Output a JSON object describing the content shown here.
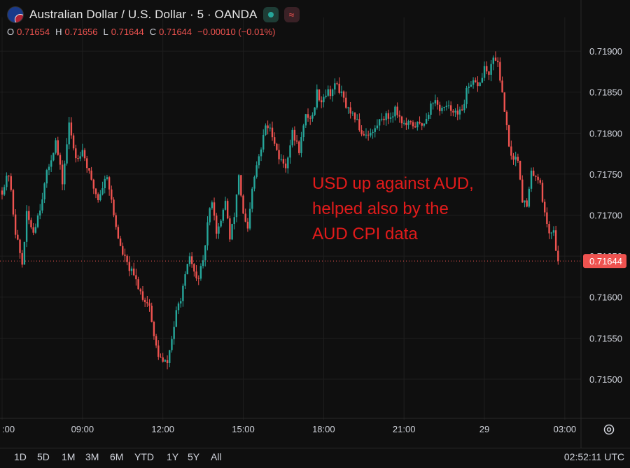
{
  "header": {
    "title": "Australian Dollar / U.S. Dollar · 5 · OANDA",
    "ohlc": [
      {
        "k": "O",
        "v": "0.71654"
      },
      {
        "k": "H",
        "v": "0.71656"
      },
      {
        "k": "L",
        "v": "0.71644"
      },
      {
        "k": "C",
        "v": "0.71644"
      }
    ],
    "change": "−0.00010 (−0.01%)"
  },
  "annotation": [
    "USD up against AUD,",
    "helped also by the",
    "AUD CPI data"
  ],
  "ranges": [
    "1D",
    "5D",
    "1M",
    "3M",
    "6M",
    "YTD",
    "1Y",
    "5Y",
    "All"
  ],
  "clock": "02:52:11 UTC",
  "colors": {
    "up": "#26a69a",
    "down": "#ef5350",
    "annotation": "#e21b1b",
    "background": "#0f0f0f"
  },
  "chart_data": {
    "type": "candlestick",
    "y_ticks": [
      0.719,
      0.7185,
      0.718,
      0.7175,
      0.717,
      0.7165,
      0.716,
      0.7155,
      0.715
    ],
    "y_tick_labels": [
      "0.71900",
      "0.71850",
      "0.71800",
      "0.71750",
      "0.71700",
      "0.71650",
      "0.71600",
      "0.71550",
      "0.71500"
    ],
    "ylim": [
      0.71459,
      0.71924
    ],
    "x_ticks": [
      {
        "label": ":00",
        "t": 0
      },
      {
        "label": "09:00",
        "t": 36
      },
      {
        "label": "12:00",
        "t": 72
      },
      {
        "label": "15:00",
        "t": 108
      },
      {
        "label": "18:00",
        "t": 144
      },
      {
        "label": "21:00",
        "t": 180
      },
      {
        "label": "29",
        "t": 216
      },
      {
        "label": "03:00",
        "t": 252
      }
    ],
    "x_range": [
      0,
      252
    ],
    "last_price": 0.71644,
    "last_price_label": "0.71644",
    "grid": true,
    "close_path": [
      [
        0,
        0.7173
      ],
      [
        3,
        0.7175
      ],
      [
        6,
        0.7168
      ],
      [
        9,
        0.7164
      ],
      [
        11,
        0.717
      ],
      [
        14,
        0.7168
      ],
      [
        17,
        0.7171
      ],
      [
        20,
        0.7175
      ],
      [
        24,
        0.7179
      ],
      [
        27,
        0.7174
      ],
      [
        30,
        0.7181
      ],
      [
        33,
        0.7177
      ],
      [
        36,
        0.7178
      ],
      [
        40,
        0.7174
      ],
      [
        43,
        0.7172
      ],
      [
        47,
        0.7175
      ],
      [
        50,
        0.717
      ],
      [
        53,
        0.7166
      ],
      [
        56,
        0.7164
      ],
      [
        60,
        0.7162
      ],
      [
        63,
        0.716
      ],
      [
        66,
        0.7159
      ],
      [
        68,
        0.7155
      ],
      [
        70,
        0.7153
      ],
      [
        72,
        0.7152
      ],
      [
        74,
        0.7152
      ],
      [
        76,
        0.7155
      ],
      [
        78,
        0.7158
      ],
      [
        81,
        0.7161
      ],
      [
        84,
        0.7165
      ],
      [
        87,
        0.7162
      ],
      [
        90,
        0.7164
      ],
      [
        92,
        0.7169
      ],
      [
        94,
        0.7172
      ],
      [
        96,
        0.7168
      ],
      [
        98,
        0.7169
      ],
      [
        100,
        0.7172
      ],
      [
        102,
        0.7167
      ],
      [
        104,
        0.717
      ],
      [
        106,
        0.7175
      ],
      [
        108,
        0.717
      ],
      [
        110,
        0.7168
      ],
      [
        112,
        0.7173
      ],
      [
        114,
        0.7176
      ],
      [
        116,
        0.7178
      ],
      [
        118,
        0.7181
      ],
      [
        121,
        0.718
      ],
      [
        124,
        0.7177
      ],
      [
        127,
        0.7176
      ],
      [
        130,
        0.718
      ],
      [
        133,
        0.7178
      ],
      [
        136,
        0.7182
      ],
      [
        139,
        0.7182
      ],
      [
        141,
        0.7185
      ],
      [
        143,
        0.7184
      ],
      [
        145,
        0.7185
      ],
      [
        147,
        0.7185
      ],
      [
        150,
        0.7186
      ],
      [
        153,
        0.7184
      ],
      [
        156,
        0.7182
      ],
      [
        158,
        0.7182
      ],
      [
        161,
        0.718
      ],
      [
        164,
        0.718
      ],
      [
        166,
        0.718
      ],
      [
        168,
        0.7181
      ],
      [
        170,
        0.7182
      ],
      [
        172,
        0.7182
      ],
      [
        174,
        0.7182
      ],
      [
        176,
        0.7183
      ],
      [
        178,
        0.7182
      ],
      [
        180,
        0.7181
      ],
      [
        183,
        0.7181
      ],
      [
        186,
        0.7181
      ],
      [
        188,
        0.7181
      ],
      [
        190,
        0.7182
      ],
      [
        193,
        0.7184
      ],
      [
        196,
        0.7183
      ],
      [
        199,
        0.7183
      ],
      [
        202,
        0.7183
      ],
      [
        204,
        0.7182
      ],
      [
        206,
        0.7183
      ],
      [
        208,
        0.7185
      ],
      [
        211,
        0.7186
      ],
      [
        214,
        0.7186
      ],
      [
        216,
        0.7188
      ],
      [
        218,
        0.7187
      ],
      [
        220,
        0.7189
      ],
      [
        222,
        0.7189
      ],
      [
        223,
        0.7186
      ],
      [
        225,
        0.7183
      ],
      [
        227,
        0.7178
      ],
      [
        229,
        0.7177
      ],
      [
        231,
        0.7177
      ],
      [
        233,
        0.7172
      ],
      [
        235,
        0.7171
      ],
      [
        237,
        0.7175
      ],
      [
        239,
        0.7175
      ],
      [
        241,
        0.7174
      ],
      [
        243,
        0.717
      ],
      [
        245,
        0.7168
      ],
      [
        247,
        0.7168
      ],
      [
        249,
        0.7164
      ]
    ]
  }
}
